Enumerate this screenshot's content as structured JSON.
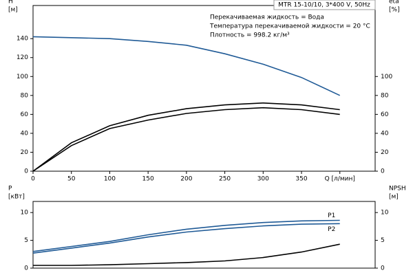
{
  "chart_data": [
    {
      "type": "line",
      "title": "MTR 15-10/10, 3*400 V, 50Hz",
      "annotations": [
        "Перекачиваемая жидкость = Вода",
        "Температура перекачиваемой жидкости = 20 °C",
        "Плотность = 998.2 кг/м³"
      ],
      "ylabel": [
        "H",
        "[м]"
      ],
      "y2label": [
        "eta",
        "[%]"
      ],
      "x": [
        0,
        50,
        100,
        150,
        200,
        250,
        300,
        350,
        400
      ],
      "xlim": [
        0,
        446
      ],
      "xticks": [
        0,
        50,
        100,
        150,
        200,
        250,
        300,
        350,
        {
          "value": 400,
          "label": "Q [л/мин]"
        }
      ],
      "ylim": [
        0,
        175
      ],
      "yticks": [
        0,
        20,
        40,
        60,
        80,
        100,
        120,
        140
      ],
      "y2lim": [
        0,
        175
      ],
      "y2ticks": [
        0,
        20,
        40,
        60,
        80,
        100
      ],
      "series": [
        {
          "color": "#1f5a96",
          "values": [
            142,
            141,
            140,
            137,
            133,
            124,
            113,
            99,
            80
          ]
        },
        {
          "color": "#000000",
          "axis": "y2",
          "values": [
            0,
            30,
            48,
            59,
            66,
            70,
            72,
            70,
            65
          ]
        },
        {
          "color": "#000000",
          "axis": "y2",
          "values": [
            0,
            27,
            45,
            54,
            61,
            65,
            67,
            65,
            60
          ]
        }
      ]
    },
    {
      "type": "line",
      "ylabel": [
        "P",
        "[кВт]"
      ],
      "y2label": [
        "NPSH",
        "[м]"
      ],
      "x": [
        0,
        50,
        100,
        150,
        200,
        250,
        300,
        350,
        400
      ],
      "xlim": [
        0,
        446
      ],
      "ylim": [
        0,
        12
      ],
      "yticks": [
        0,
        5,
        10
      ],
      "y2lim": [
        0,
        12
      ],
      "y2ticks": [
        0,
        5,
        10
      ],
      "series": [
        {
          "name": "P1",
          "color": "#1f5a96",
          "values": [
            3.0,
            3.9,
            4.8,
            6.0,
            7.0,
            7.7,
            8.2,
            8.5,
            8.6
          ]
        },
        {
          "name": "P2",
          "color": "#1f5a96",
          "values": [
            2.7,
            3.6,
            4.5,
            5.6,
            6.5,
            7.1,
            7.6,
            7.9,
            8.0
          ]
        },
        {
          "color": "#000000",
          "axis": "y2",
          "values": [
            0.5,
            0.5,
            0.6,
            0.8,
            1.0,
            1.3,
            1.9,
            2.9,
            4.3
          ]
        }
      ]
    }
  ]
}
